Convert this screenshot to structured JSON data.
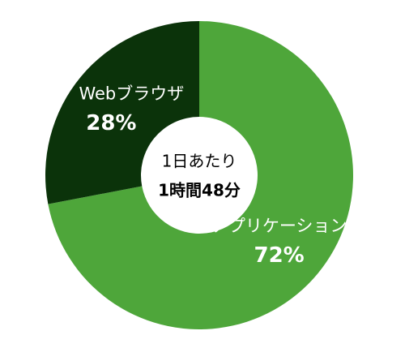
{
  "chart_data": {
    "type": "donut",
    "categories": [
      "アプリケーション",
      "Webブラウザ"
    ],
    "values": [
      72,
      28
    ],
    "value_labels": [
      "72%",
      "28%"
    ],
    "colors": [
      "#4ea63a",
      "#0b330a"
    ],
    "center_label": [
      "1日あたり",
      "1時間48分"
    ]
  }
}
